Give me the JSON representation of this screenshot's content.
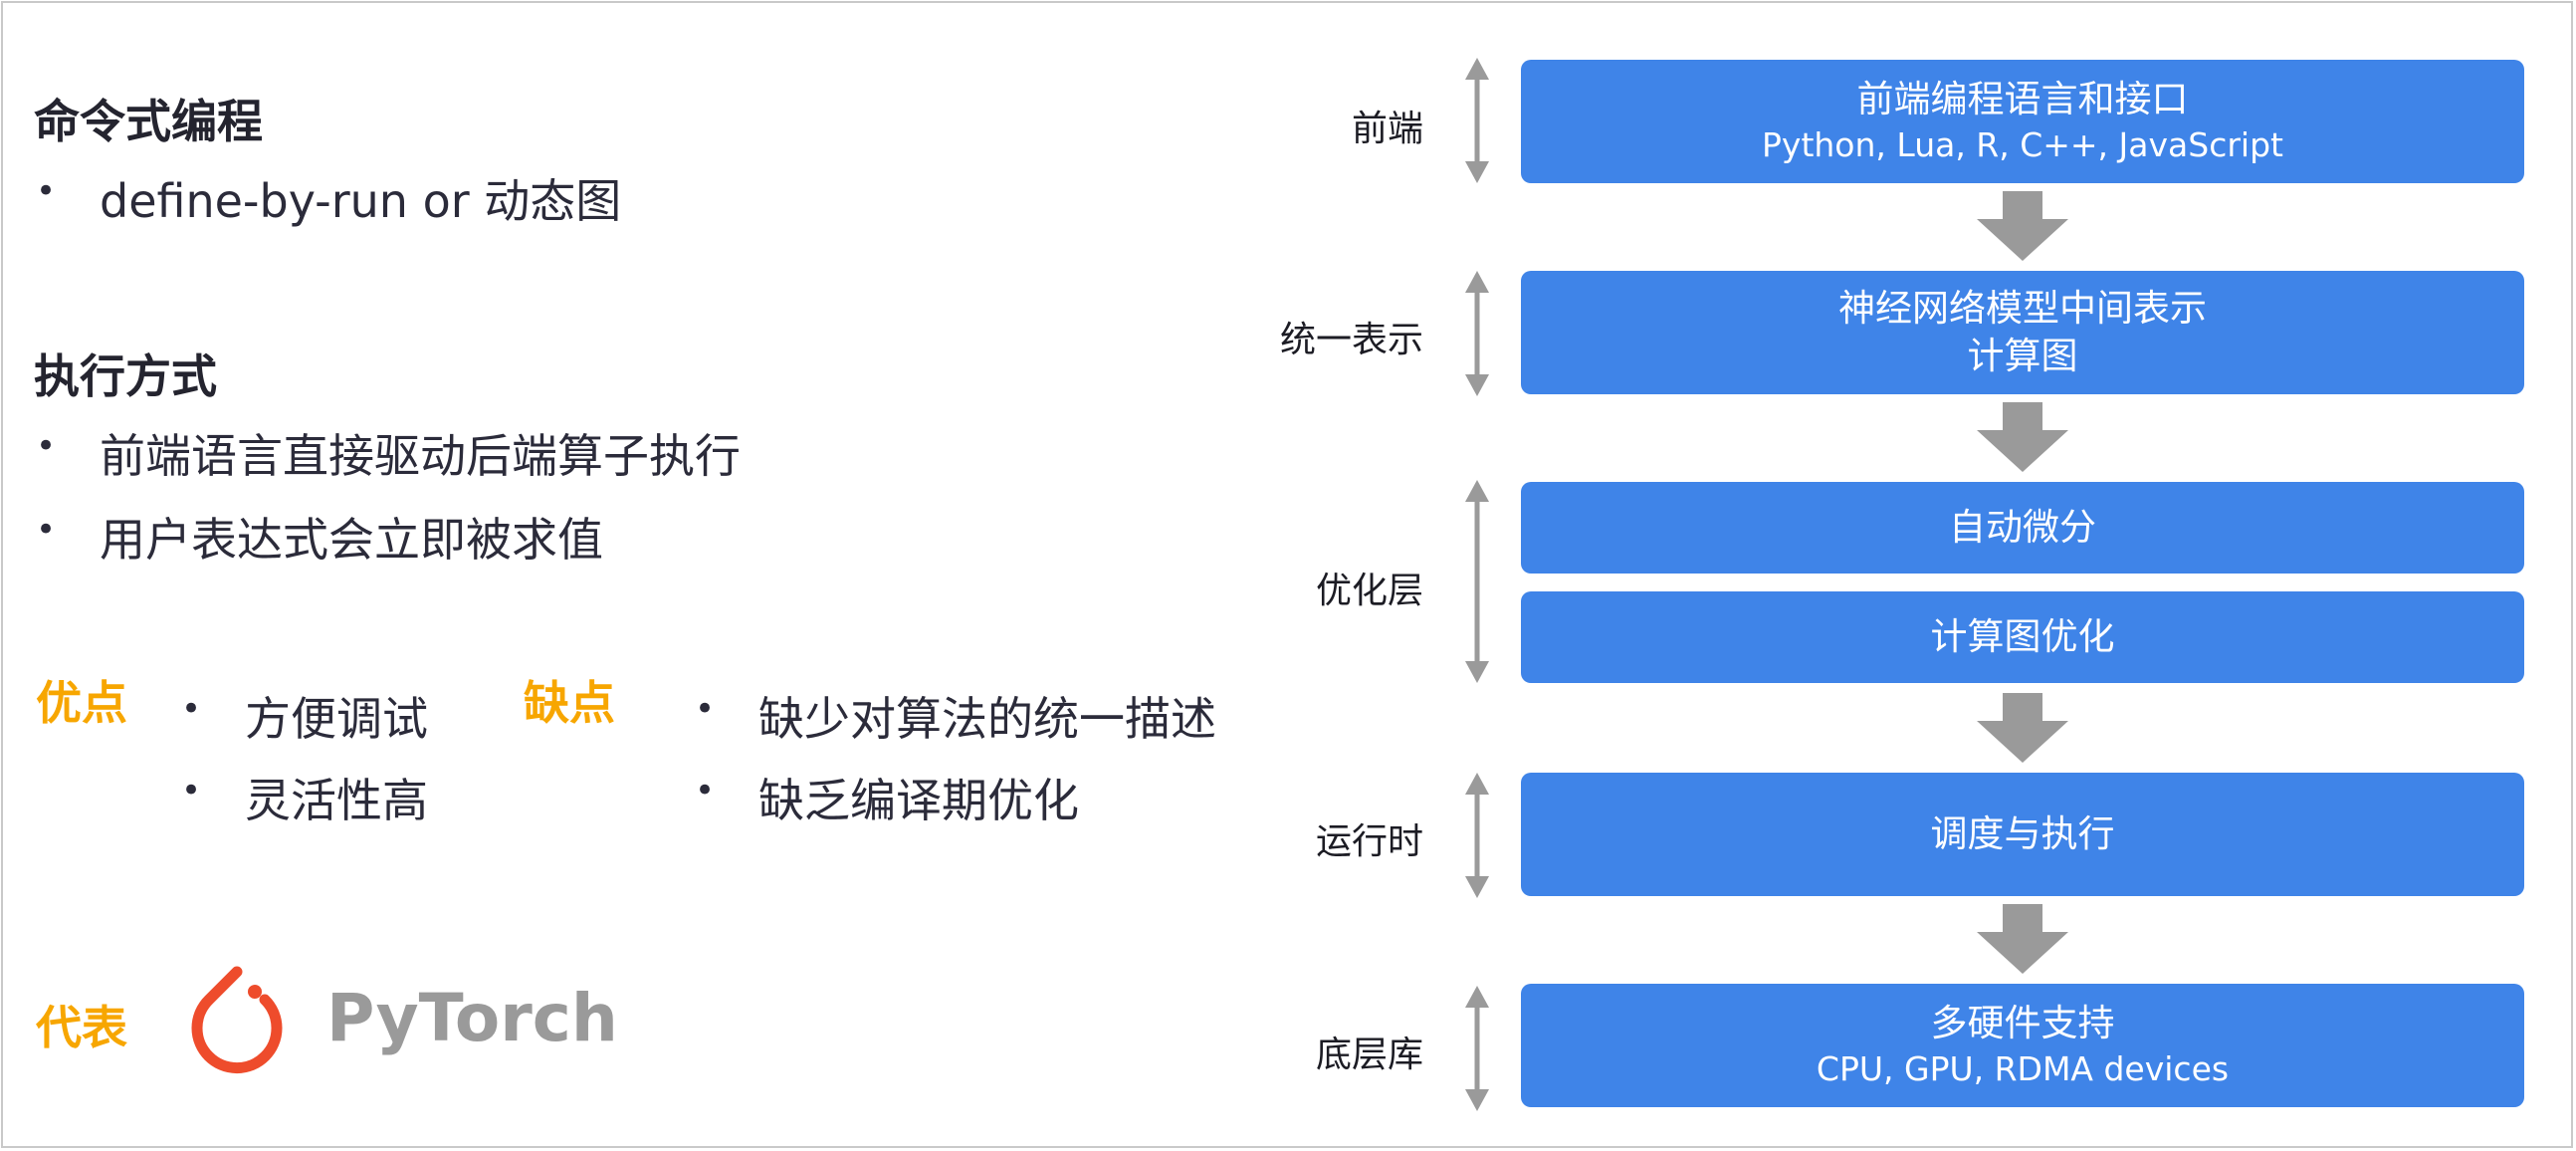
{
  "left": {
    "section1": {
      "title": "命令式编程",
      "bullets": [
        "define-by-run or 动态图"
      ]
    },
    "section2": {
      "title": "执行方式",
      "bullets": [
        "前端语言直接驱动后端算子执行",
        "用户表达式会立即被求值"
      ]
    },
    "pros": {
      "label": "优点",
      "items": [
        "方便调试",
        "灵活性高"
      ]
    },
    "cons": {
      "label": "缺点",
      "items": [
        "缺少对算法的统一描述",
        "缺乏编译期优化"
      ]
    },
    "representative": {
      "label": "代表",
      "product": "PyTorch",
      "logo_color": "#ee4c2c"
    }
  },
  "diagram": {
    "box_color": "#3f84e8",
    "arrow_color": "#9a9a9a",
    "layers": [
      {
        "label": "前端",
        "boxes": [
          {
            "title": "前端编程语言和接口",
            "subtitle": "Python, Lua, R, C++, JavaScript"
          }
        ]
      },
      {
        "label": "统一表示",
        "boxes": [
          {
            "title": "神经网络模型中间表示",
            "subtitle": "计算图"
          }
        ]
      },
      {
        "label": "优化层",
        "boxes": [
          {
            "title": "自动微分"
          },
          {
            "title": "计算图优化"
          }
        ]
      },
      {
        "label": "运行时",
        "boxes": [
          {
            "title": "调度与执行"
          }
        ]
      },
      {
        "label": "底层库",
        "boxes": [
          {
            "title": "多硬件支持",
            "subtitle": "CPU, GPU, RDMA devices"
          }
        ]
      }
    ]
  }
}
